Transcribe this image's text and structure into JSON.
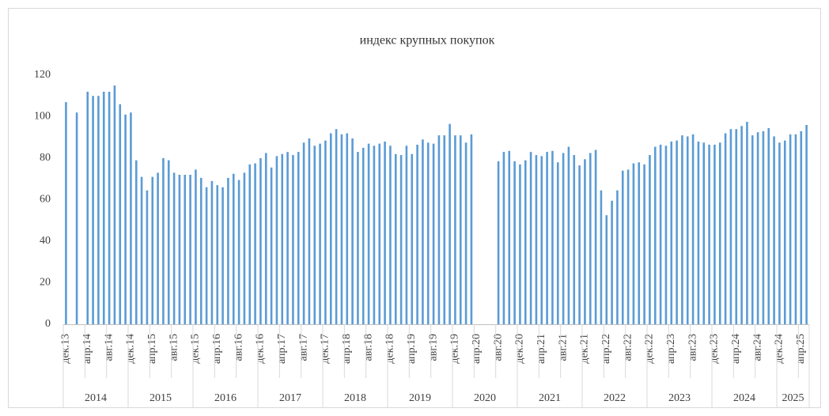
{
  "chart_data": {
    "type": "bar",
    "title": "индекс крупных покупок",
    "categories": [
      "дек.13",
      null,
      null,
      null,
      "апр.14",
      null,
      null,
      null,
      "авг.14",
      null,
      null,
      null,
      "дек.14",
      null,
      null,
      null,
      "апр.15",
      null,
      null,
      null,
      "авг.15",
      null,
      null,
      null,
      "дек.15",
      null,
      null,
      null,
      "апр.16",
      null,
      null,
      null,
      "авг.16",
      null,
      null,
      null,
      "дек.16",
      null,
      null,
      null,
      "апр.17",
      null,
      null,
      null,
      "авг.17",
      null,
      null,
      null,
      "дек.17",
      null,
      null,
      null,
      "апр.18",
      null,
      null,
      null,
      "авг.18",
      null,
      null,
      null,
      "дек.18",
      null,
      null,
      null,
      "апр.19",
      null,
      null,
      null,
      "авг.19",
      null,
      null,
      null,
      "дек.19",
      null,
      null,
      null,
      "апр.20",
      null,
      null,
      null,
      "авг.20",
      null,
      null,
      null,
      "дек.20",
      null,
      null,
      null,
      "апр.21",
      null,
      null,
      null,
      "авг.21",
      null,
      null,
      null,
      "дек.21",
      null,
      null,
      null,
      "апр.22",
      null,
      null,
      null,
      "авг.22",
      null,
      null,
      null,
      "дек.22",
      null,
      null,
      null,
      "апр.23",
      null,
      null,
      null,
      "авг.23",
      null,
      null,
      null,
      "дек.23",
      null,
      null,
      null,
      "апр.24",
      null,
      null,
      null,
      "авг.24",
      null,
      null,
      null,
      "дек.24",
      null,
      null,
      null,
      "апр.25",
      null
    ],
    "values": [
      107,
      null,
      102,
      null,
      112,
      110,
      110,
      112,
      112,
      115,
      106,
      101,
      102,
      79,
      71,
      64.5,
      71,
      73,
      80,
      79,
      73,
      72,
      72,
      72,
      74.5,
      70.5,
      66,
      69,
      67,
      66,
      70.5,
      72.5,
      69.5,
      73,
      77,
      77.5,
      80,
      82.5,
      75.5,
      81,
      82,
      83,
      81.5,
      83,
      87.5,
      89.5,
      86,
      87,
      88.5,
      92,
      94,
      91.5,
      92,
      89.5,
      83,
      85,
      87,
      86,
      87,
      88,
      86,
      82,
      81.5,
      86,
      82,
      86.5,
      89,
      87.5,
      87,
      91,
      91,
      96.5,
      91,
      91,
      87.5,
      91.5,
      null,
      null,
      null,
      null,
      78.5,
      83,
      83.5,
      78.5,
      77,
      79,
      83,
      81.5,
      81,
      83,
      83.5,
      78,
      82.5,
      85.5,
      81.5,
      76.5,
      79.5,
      82.5,
      84,
      64.5,
      52.5,
      59.5,
      64.5,
      74,
      74.5,
      77.5,
      78,
      77,
      81.5,
      85.5,
      86.5,
      86,
      88,
      88.5,
      91,
      90.5,
      91.5,
      88,
      87.5,
      86.5,
      86.5,
      87.5,
      92,
      94,
      94,
      95.5,
      97.5,
      91,
      92.5,
      93,
      94.5,
      90.5,
      87.5,
      88.5,
      91.5,
      91.5,
      93,
      96
    ],
    "year_labels": [
      "2014",
      "2015",
      "2016",
      "2017",
      "2018",
      "2019",
      "2020",
      "2021",
      "2022",
      "2023",
      "2024",
      "2025"
    ],
    "color": "#5b9bd5",
    "ylim": [
      0,
      120
    ],
    "yticks": [
      0,
      20,
      40,
      60,
      80,
      100,
      120
    ],
    "grid": false
  }
}
